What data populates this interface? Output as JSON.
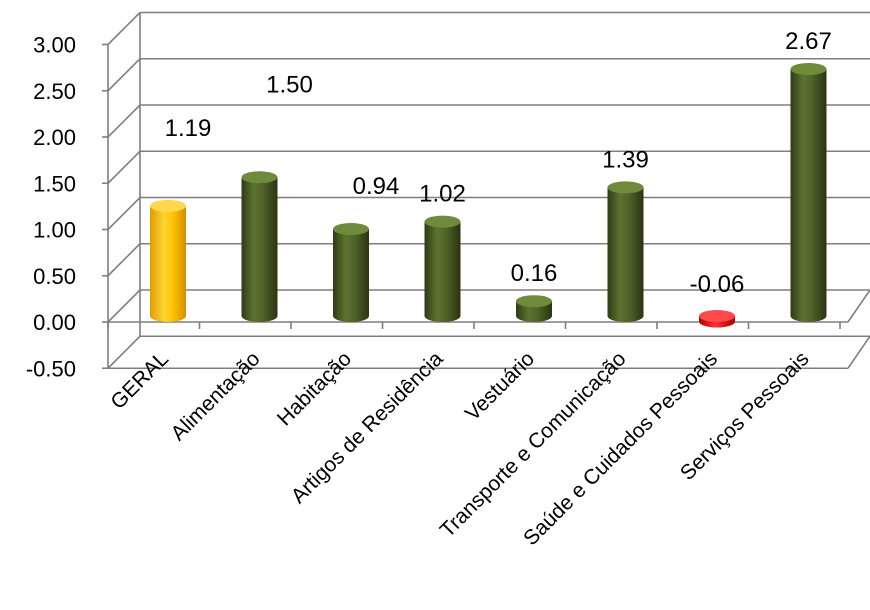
{
  "chart_data": {
    "type": "bar",
    "categories": [
      "GERAL",
      "Alimentação",
      "Habitação",
      "Artigos de Residência",
      "Vestuário",
      "Transporte e Comunicação",
      "Saúde e Cuidados Pessoais",
      "Serviços Pessoais"
    ],
    "values": [
      1.19,
      1.5,
      0.94,
      1.02,
      0.16,
      1.39,
      -0.06,
      2.67
    ],
    "value_labels": [
      "1.19",
      "1.50",
      "0.94",
      "1.02",
      "0.16",
      "1.39",
      "-0.06",
      "2.67"
    ],
    "yticks": [
      "-0.50",
      "0.00",
      "0.50",
      "1.00",
      "1.50",
      "2.00",
      "2.50",
      "3.00"
    ],
    "ylim": [
      -0.5,
      3.0
    ],
    "grid": true,
    "style": "3d-cylinder",
    "colors": {
      "GERAL": "#FFC000",
      "default": "#4F6228",
      "negative": "#FF0000"
    }
  }
}
